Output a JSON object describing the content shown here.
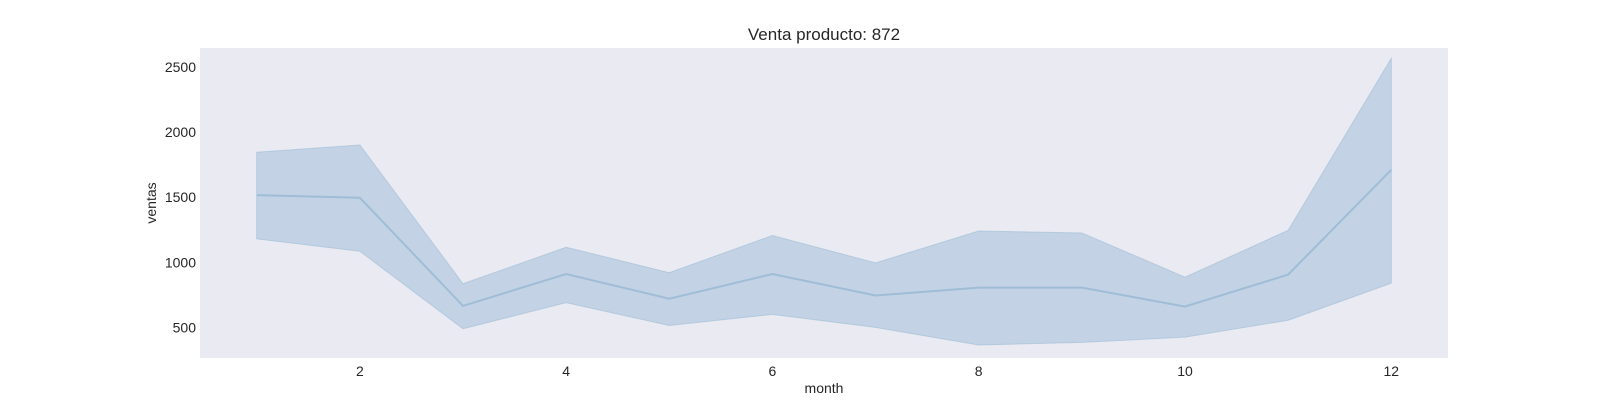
{
  "chart_data": {
    "type": "line",
    "title": "Venta producto: 872",
    "xlabel": "month",
    "ylabel": "ventas",
    "xlim": [
      0.45,
      12.55
    ],
    "ylim": [
      265,
      2645
    ],
    "xticks": [
      2,
      4,
      6,
      8,
      10,
      12
    ],
    "yticks": [
      500,
      1000,
      1500,
      2000,
      2500
    ],
    "grid": false,
    "colors": {
      "plot_background": "#eaeaf2",
      "line": "#9fbdd6",
      "band": "#c3d3e5"
    },
    "series": [
      {
        "x": [
          1,
          2,
          3,
          4,
          5,
          6,
          7,
          8,
          9,
          10,
          11,
          12
        ],
        "values": [
          1515,
          1495,
          665,
          910,
          720,
          910,
          745,
          805,
          805,
          660,
          905,
          1710
        ],
        "lower": [
          1180,
          1085,
          490,
          690,
          515,
          600,
          500,
          365,
          385,
          425,
          555,
          840
        ],
        "upper": [
          1845,
          1900,
          835,
          1115,
          920,
          1205,
          995,
          1240,
          1225,
          885,
          1245,
          2565
        ]
      }
    ]
  }
}
